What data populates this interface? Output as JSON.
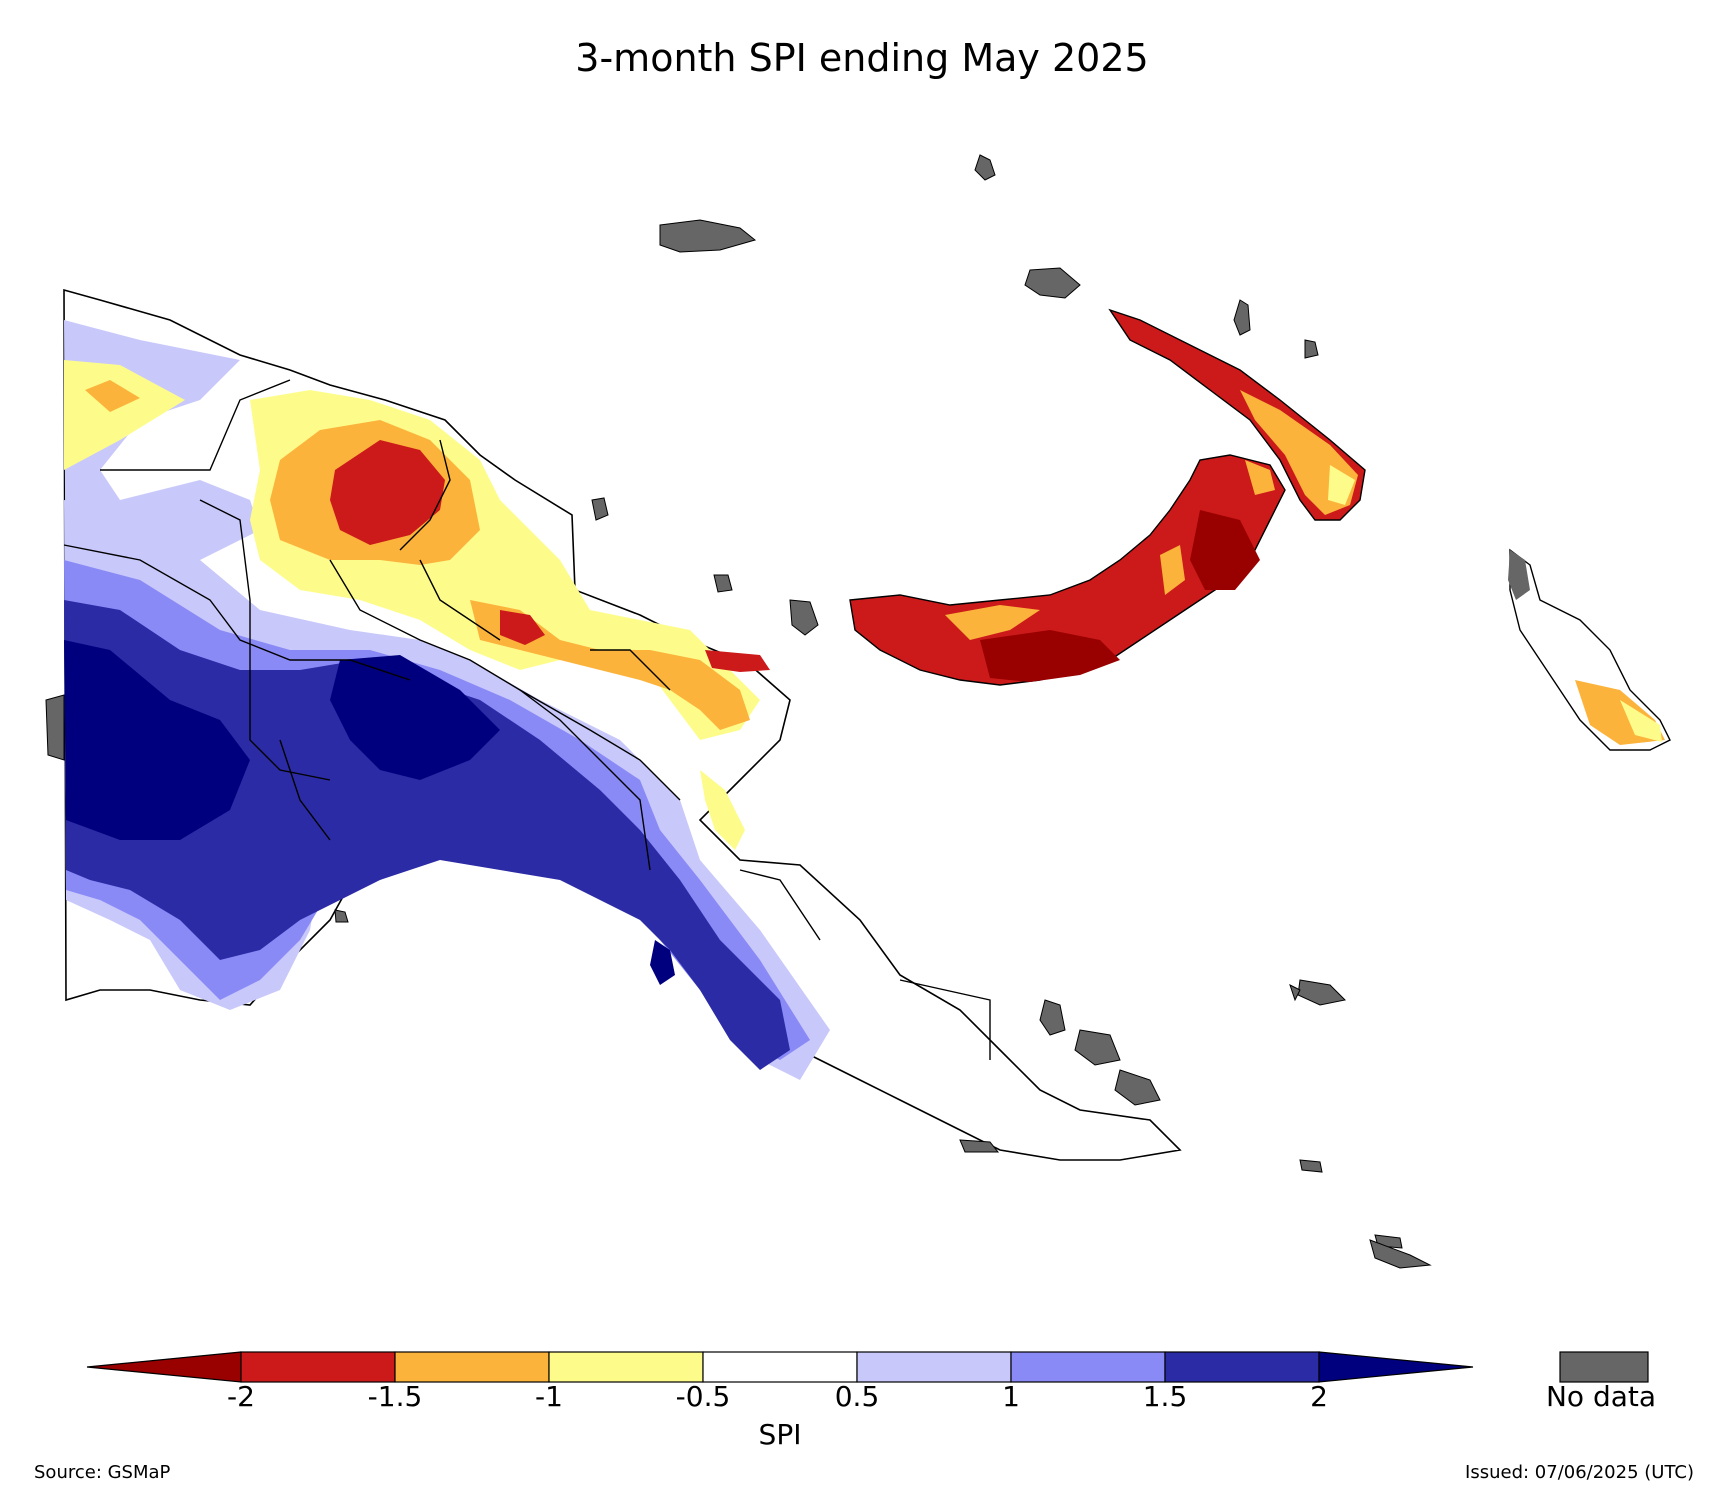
{
  "title": "3-month SPI ending May 2025",
  "colorbar": {
    "label": "SPI",
    "ticks": [
      "-2",
      "-1.5",
      "-1",
      "-0.5",
      "0.5",
      "1",
      "1.5",
      "2"
    ],
    "bins": [
      {
        "range": "< -2",
        "color": "#990000"
      },
      {
        "range": "-2 to -1.5",
        "color": "#cc1a1a"
      },
      {
        "range": "-1.5 to -1",
        "color": "#fbb33b"
      },
      {
        "range": "-1 to -0.5",
        "color": "#fdfc8b"
      },
      {
        "range": "-0.5 to 0.5",
        "color": "#ffffff"
      },
      {
        "range": "0.5 to 1",
        "color": "#c8c8fb"
      },
      {
        "range": "1 to 1.5",
        "color": "#8a8af7"
      },
      {
        "range": "1.5 to 2",
        "color": "#2b2ba6"
      },
      {
        "range": "> 2",
        "color": "#00007f"
      }
    ]
  },
  "no_data": {
    "label": "No data",
    "color": "#666666"
  },
  "source": "Source: GSMaP",
  "issued": "Issued: 07/06/2025 (UTC)"
}
